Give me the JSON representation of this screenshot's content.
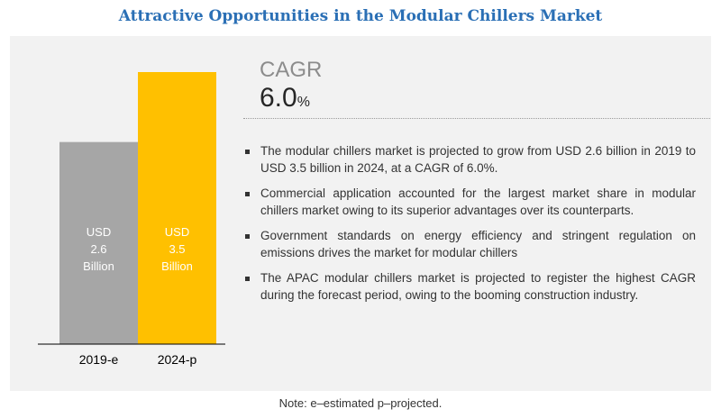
{
  "title": "Attractive Opportunities in the Modular Chillers Market",
  "cagr": {
    "label": "CAGR",
    "value": "6.0",
    "unit": "%"
  },
  "bullets": [
    "The modular chillers market is projected to grow from USD 2.6 billion in 2019 to USD 3.5 billion in 2024, at a CAGR of 6.0%.",
    "Commercial application accounted for the largest market share in modular chillers market owing to its superior advantages over its counterparts.",
    "Government standards on energy efficiency and stringent regulation on emissions drives the market for modular chillers",
    "The APAC modular chillers market is projected to register the highest CAGR during the forecast period, owing to the booming construction industry."
  ],
  "note": "Note: e–estimated p–projected.",
  "chart_data": {
    "type": "bar",
    "categories": [
      "2019-e",
      "2024-p"
    ],
    "values": [
      2.6,
      3.5
    ],
    "bar_labels": [
      [
        "USD",
        "2.6",
        "Billion"
      ],
      [
        "USD",
        "3.5",
        "Billion"
      ]
    ],
    "colors": [
      "#a6a6a6",
      "#ffc000"
    ],
    "ylim": [
      0,
      3.5
    ]
  }
}
